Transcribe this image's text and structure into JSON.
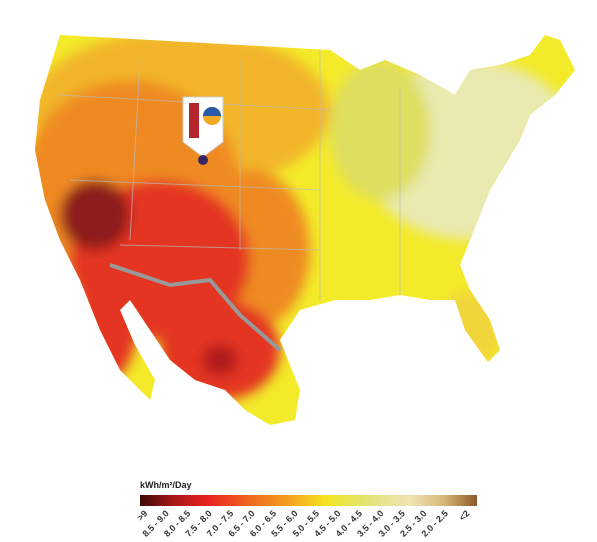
{
  "legend": {
    "title": "kWh/m²/Day",
    "labels": [
      ">9",
      "8.5 - 9.0",
      "8.0 - 8.5",
      "7.5 - 8.0",
      "7.0 - 7.5",
      "6.5 - 7.0",
      "6.0 - 6.5",
      "5.5 - 6.0",
      "5.0 - 5.5",
      "4.5 - 5.0",
      "4.0 - 4.5",
      "3.5 - 4.0",
      "3.0 - 3.5",
      "2.5 - 3.0",
      "2.0 - 2.5",
      "<2"
    ]
  }
}
